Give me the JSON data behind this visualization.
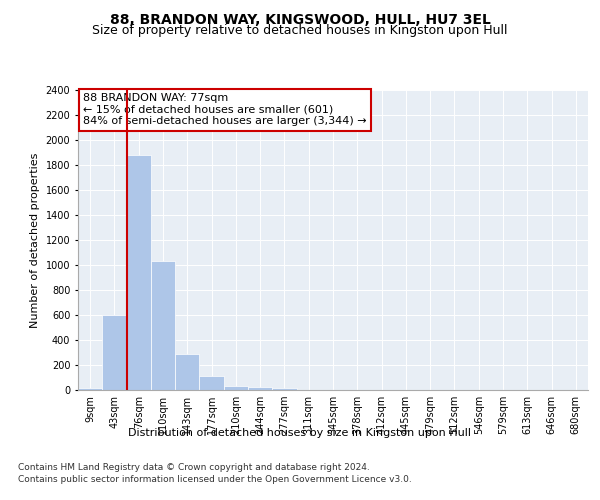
{
  "title": "88, BRANDON WAY, KINGSWOOD, HULL, HU7 3EL",
  "subtitle": "Size of property relative to detached houses in Kingston upon Hull",
  "xlabel_bottom": "Distribution of detached houses by size in Kingston upon Hull",
  "ylabel": "Number of detached properties",
  "categories": [
    "9sqm",
    "43sqm",
    "76sqm",
    "110sqm",
    "143sqm",
    "177sqm",
    "210sqm",
    "244sqm",
    "277sqm",
    "311sqm",
    "345sqm",
    "378sqm",
    "412sqm",
    "445sqm",
    "479sqm",
    "512sqm",
    "546sqm",
    "579sqm",
    "613sqm",
    "646sqm",
    "680sqm"
  ],
  "values": [
    15,
    600,
    1880,
    1030,
    285,
    110,
    35,
    25,
    15,
    0,
    0,
    0,
    0,
    0,
    0,
    0,
    0,
    0,
    0,
    0,
    0
  ],
  "bar_color": "#aec6e8",
  "property_line_color": "#cc0000",
  "property_line_index": 2,
  "annotation_text": "88 BRANDON WAY: 77sqm\n← 15% of detached houses are smaller (601)\n84% of semi-detached houses are larger (3,344) →",
  "annotation_box_color": "#ffffff",
  "annotation_box_edge_color": "#cc0000",
  "ylim": [
    0,
    2400
  ],
  "yticks": [
    0,
    200,
    400,
    600,
    800,
    1000,
    1200,
    1400,
    1600,
    1800,
    2000,
    2200,
    2400
  ],
  "background_color": "#e8eef5",
  "footer_line1": "Contains HM Land Registry data © Crown copyright and database right 2024.",
  "footer_line2": "Contains public sector information licensed under the Open Government Licence v3.0.",
  "title_fontsize": 10,
  "subtitle_fontsize": 9,
  "axis_label_fontsize": 8,
  "tick_fontsize": 7,
  "annotation_fontsize": 8,
  "footer_fontsize": 6.5
}
